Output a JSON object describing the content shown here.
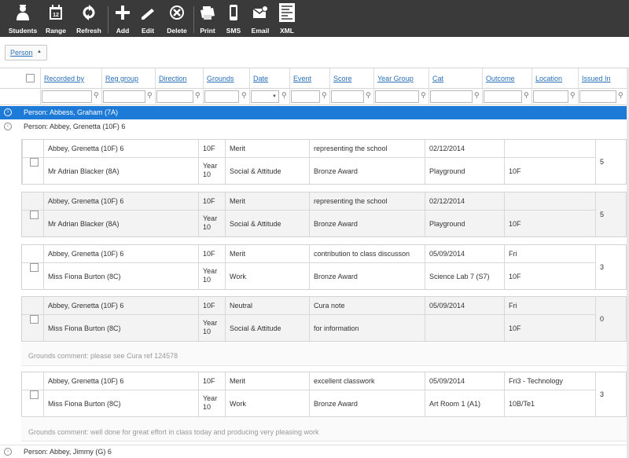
{
  "toolbar": {
    "buttons": [
      {
        "label": "Students",
        "icon": "students-icon"
      },
      {
        "label": "Range",
        "icon": "calendar-range-icon"
      },
      {
        "label": "Refresh",
        "icon": "refresh-icon"
      },
      {
        "label": "Add",
        "icon": "plus-icon"
      },
      {
        "label": "Edit",
        "icon": "pencil-icon"
      },
      {
        "label": "Delete",
        "icon": "delete-icon"
      },
      {
        "label": "Print",
        "icon": "print-icon"
      },
      {
        "label": "SMS",
        "icon": "phone-icon"
      },
      {
        "label": "Email",
        "icon": "email-icon"
      },
      {
        "label": "XML",
        "icon": "xml-icon"
      }
    ]
  },
  "groupbar": {
    "chip": "Person"
  },
  "columns": [
    "Recorded by",
    "Reg group",
    "Direction",
    "Grounds",
    "Date",
    "Event",
    "Score",
    "Year Group",
    "Cat",
    "Outcome",
    "Location",
    "Issued In"
  ],
  "groups": [
    {
      "label": "Person: Abbess, Graham (7A)"
    },
    {
      "label": "Person: Abbey, Grenetta (10F) 6"
    },
    {
      "label": "Person: Abbey, Jimmy (G) 6"
    }
  ],
  "records": [
    {
      "person": "Abbey, Grenetta (10F) 6",
      "reg": "10F",
      "direction": "Merit",
      "event": "representing the school",
      "date": "02/12/2014",
      "outcome": "",
      "staff": "Mr Adrian Blacker (8A)",
      "year": "Year 10",
      "grounds": "Social & Attitude",
      "score": "Bronze Award",
      "location": "Playground",
      "issued": "10F",
      "total": "5"
    },
    {
      "person": "Abbey, Grenetta (10F) 6",
      "reg": "10F",
      "direction": "Merit",
      "event": "representing the school",
      "date": "02/12/2014",
      "outcome": "",
      "staff": "Mr Adrian Blacker (8A)",
      "year": "Year 10",
      "grounds": "Social & Attitude",
      "score": "Bronze Award",
      "location": "Playground",
      "issued": "10F",
      "total": "5"
    },
    {
      "person": "Abbey, Grenetta (10F) 6",
      "reg": "10F",
      "direction": "Merit",
      "event": "contribution to class discusson",
      "date": "05/09/2014",
      "outcome": "Fri",
      "staff": "Miss Fiona Burton (8C)",
      "year": "Year 10",
      "grounds": "Work",
      "score": "Bronze Award",
      "location": "Science Lab 7 (S7)",
      "issued": "10F",
      "total": "3"
    },
    {
      "person": "Abbey, Grenetta (10F) 6",
      "reg": "10F",
      "direction": "Neutral",
      "event": "Cura note",
      "date": "05/09/2014",
      "outcome": "Fri",
      "staff": "Miss Fiona Burton (8C)",
      "year": "Year 10",
      "grounds": "Social & Attitude",
      "score": "for information",
      "location": "",
      "issued": "10F",
      "total": "0"
    },
    {
      "person": "Abbey, Grenetta (10F) 6",
      "reg": "10F",
      "direction": "Merit",
      "event": "excellent classwork",
      "date": "05/09/2014",
      "outcome": "Fri3 - Technology",
      "staff": "Miss Fiona Burton (8C)",
      "year": "Year 10",
      "grounds": "Work",
      "score": "Bronze Award",
      "location": "Art Room 1 (A1)",
      "issued": "10B/Te1",
      "total": "3"
    }
  ],
  "comments": [
    "Grounds comment: please see Cura ref 124578",
    "Grounds comment: well done for great effort in class today and producing very pleasing work"
  ],
  "colors": {
    "toolbar": "#3a3a3a",
    "selected_group": "#1e7ad7",
    "link": "#2a6fb9"
  }
}
